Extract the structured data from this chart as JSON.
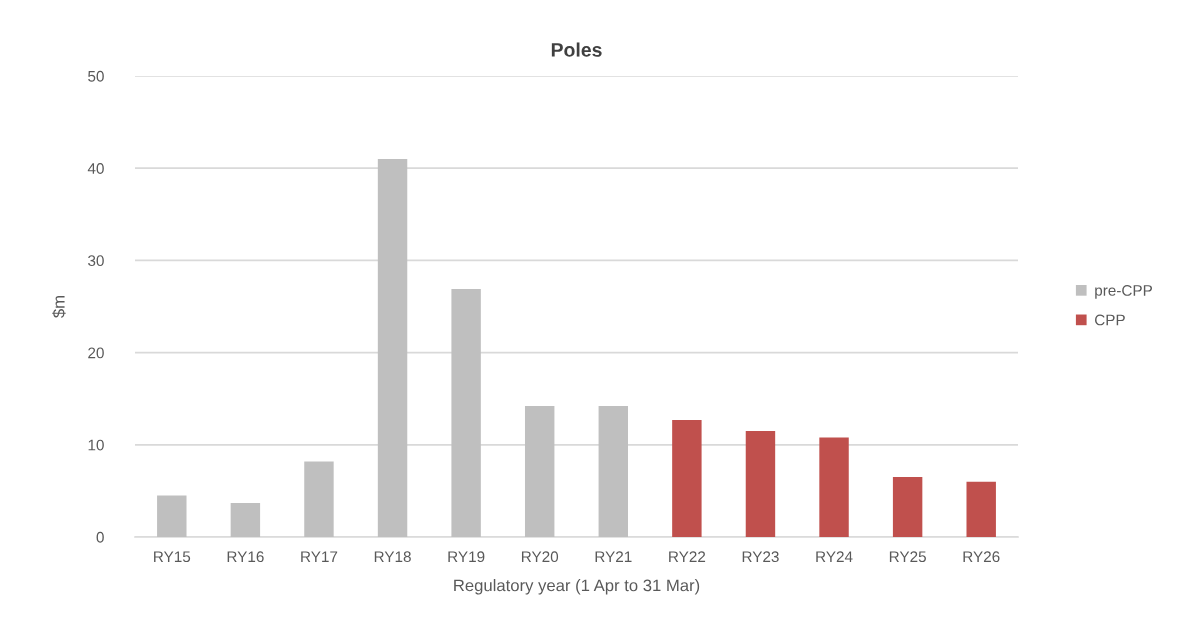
{
  "chart_data": {
    "type": "bar",
    "title": "Poles",
    "xlabel": "Regulatory year (1 Apr to 31 Mar)",
    "ylabel": "$m",
    "categories": [
      "RY15",
      "RY16",
      "RY17",
      "RY18",
      "RY19",
      "RY20",
      "RY21",
      "RY22",
      "RY23",
      "RY24",
      "RY25",
      "RY26"
    ],
    "series": [
      {
        "name": "pre-CPP",
        "color": "#bfbfbf",
        "values": [
          4.5,
          3.7,
          8.2,
          41.0,
          26.9,
          14.2,
          14.2,
          null,
          null,
          null,
          null,
          null
        ]
      },
      {
        "name": "CPP",
        "color": "#c0504d",
        "values": [
          null,
          null,
          null,
          null,
          null,
          null,
          null,
          12.7,
          11.5,
          10.8,
          6.5,
          6.0
        ]
      }
    ],
    "ylim": [
      0,
      50
    ],
    "yticks": [
      0,
      10,
      20,
      30,
      40,
      50
    ],
    "grid": "y",
    "legend": "right"
  }
}
